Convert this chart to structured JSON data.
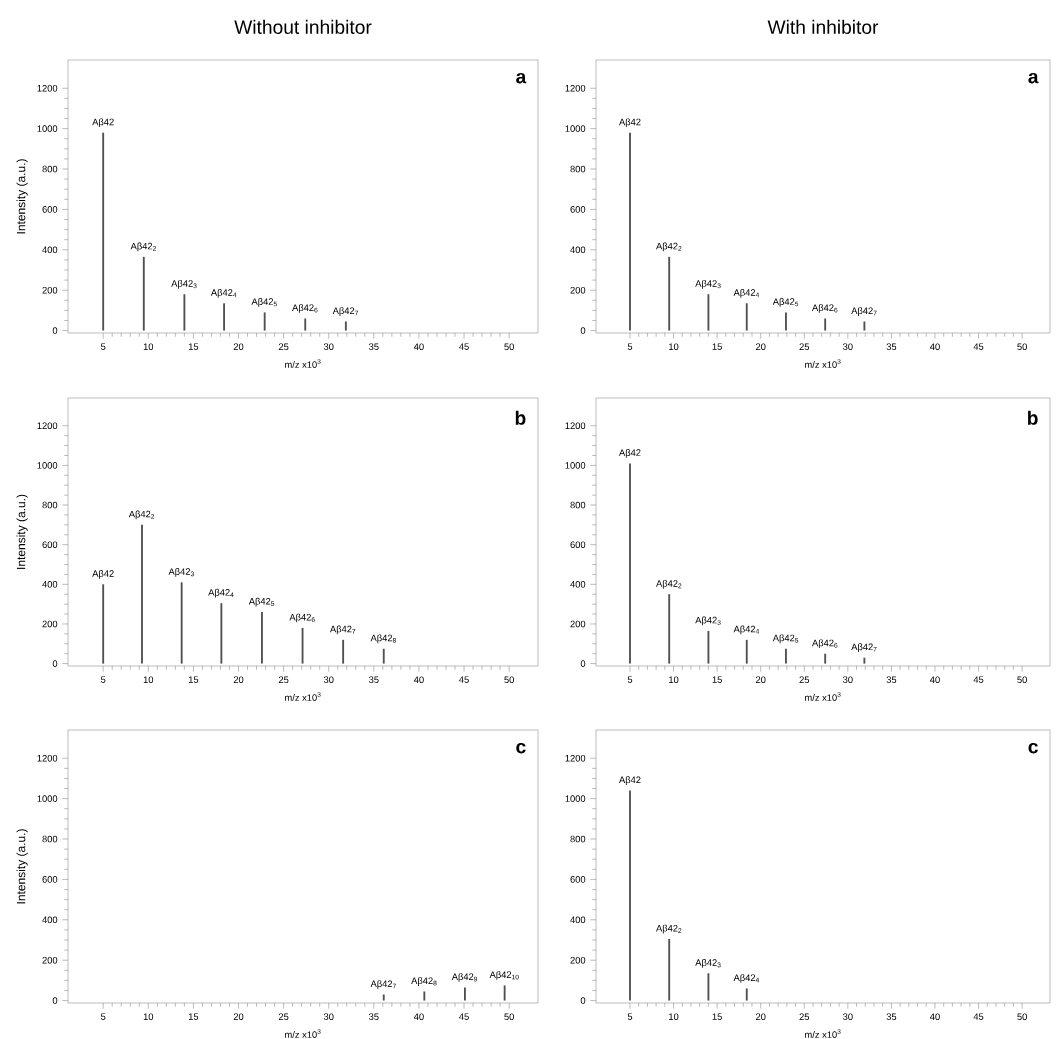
{
  "chart_data": [
    {
      "type": "bar",
      "title": "Without inhibitor",
      "xlabel": "m/z x10$^{3}$",
      "ylabel": "Intensity (a.u.)",
      "color": "#505050",
      "xlim": [
        1.1,
        53.2
      ],
      "ylim": [
        -12,
        1340
      ],
      "xticks": [
        5,
        10,
        15,
        20,
        25,
        30,
        35,
        40,
        45,
        50
      ],
      "yticks": [
        0,
        200,
        400,
        600,
        800,
        1000,
        1200
      ],
      "annotations": [
        "a"
      ],
      "x": [
        5,
        9.5,
        14,
        18.4,
        22.9,
        27.4,
        31.9
      ],
      "values": [
        980,
        365,
        180,
        135,
        90,
        60,
        45
      ],
      "value_labels": [
        "Aβ42",
        "Aβ42$_{2}$",
        "Aβ42$_{3}$",
        "Aβ42$_{4}$",
        "Aβ42$_{5}$",
        "Aβ42$_{6}$",
        "Aβ42$_{7}$"
      ]
    },
    {
      "type": "bar",
      "title": "With inhibitor",
      "xlabel": "m/z x10$^{3}$",
      "color": "#505050",
      "xlim": [
        1.1,
        53.2
      ],
      "ylim": [
        -12,
        1340
      ],
      "xticks": [
        5,
        10,
        15,
        20,
        25,
        30,
        35,
        40,
        45,
        50
      ],
      "yticks": [
        0,
        200,
        400,
        600,
        800,
        1000,
        1200
      ],
      "annotations": [
        "a"
      ],
      "x": [
        5,
        9.5,
        14,
        18.4,
        22.9,
        27.4,
        31.9
      ],
      "values": [
        980,
        365,
        180,
        135,
        90,
        60,
        45
      ],
      "value_labels": [
        "Aβ42",
        "Aβ42$_{2}$",
        "Aβ42$_{3}$",
        "Aβ42$_{4}$",
        "Aβ42$_{5}$",
        "Aβ42$_{6}$",
        "Aβ42$_{7}$"
      ]
    },
    {
      "type": "bar",
      "xlabel": "m/z x10$^{3}$",
      "ylabel": "Intensity (a.u.)",
      "color": "#505050",
      "xlim": [
        1.1,
        53.2
      ],
      "ylim": [
        -12,
        1340
      ],
      "xticks": [
        5,
        10,
        15,
        20,
        25,
        30,
        35,
        40,
        45,
        50
      ],
      "yticks": [
        0,
        200,
        400,
        600,
        800,
        1000,
        1200
      ],
      "annotations": [
        "b"
      ],
      "x": [
        5,
        9.3,
        13.7,
        18.1,
        22.6,
        27.1,
        31.6,
        36.1
      ],
      "values": [
        400,
        700,
        410,
        305,
        260,
        180,
        120,
        75
      ],
      "value_labels": [
        "Aβ42",
        "Aβ42$_{2}$",
        "Aβ42$_{3}$",
        "Aβ42$_{4}$",
        "Aβ42$_{5}$",
        "Aβ42$_{6}$",
        "Aβ42$_{7}$",
        "Aβ42$_{8}$"
      ]
    },
    {
      "type": "bar",
      "xlabel": "m/z x10$^{3}$",
      "color": "#505050",
      "xlim": [
        1.1,
        53.2
      ],
      "ylim": [
        -12,
        1340
      ],
      "xticks": [
        5,
        10,
        15,
        20,
        25,
        30,
        35,
        40,
        45,
        50
      ],
      "yticks": [
        0,
        200,
        400,
        600,
        800,
        1000,
        1200
      ],
      "annotations": [
        "b"
      ],
      "x": [
        5,
        9.5,
        14,
        18.4,
        22.9,
        27.4,
        31.9
      ],
      "values": [
        1010,
        350,
        165,
        120,
        75,
        50,
        30
      ],
      "value_labels": [
        "Aβ42",
        "Aβ42$_{2}$",
        "Aβ42$_{3}$",
        "Aβ42$_{4}$",
        "Aβ42$_{5}$",
        "Aβ42$_{6}$",
        "Aβ42$_{7}$"
      ]
    },
    {
      "type": "bar",
      "xlabel": "m/z x10$^{3}$",
      "ylabel": "Intensity (a.u.)",
      "color": "#505050",
      "xlim": [
        1.1,
        53.2
      ],
      "ylim": [
        -12,
        1340
      ],
      "xticks": [
        5,
        10,
        15,
        20,
        25,
        30,
        35,
        40,
        45,
        50
      ],
      "yticks": [
        0,
        200,
        400,
        600,
        800,
        1000,
        1200
      ],
      "annotations": [
        "c"
      ],
      "x": [
        36.1,
        40.6,
        45.1,
        49.5
      ],
      "values": [
        30,
        45,
        65,
        75
      ],
      "value_labels": [
        "Aβ42$_{7}$",
        "Aβ42$_{8}$",
        "Aβ42$_{9}$",
        "Aβ42$_{10}$"
      ]
    },
    {
      "type": "bar",
      "xlabel": "m/z x10$^{3}$",
      "color": "#505050",
      "xlim": [
        1.1,
        53.2
      ],
      "ylim": [
        -12,
        1340
      ],
      "xticks": [
        5,
        10,
        15,
        20,
        25,
        30,
        35,
        40,
        45,
        50
      ],
      "yticks": [
        0,
        200,
        400,
        600,
        800,
        1000,
        1200
      ],
      "annotations": [
        "c"
      ],
      "x": [
        5,
        9.5,
        14,
        18.4
      ],
      "values": [
        1040,
        305,
        135,
        60
      ],
      "value_labels": [
        "Aβ42",
        "Aβ42$_{2}$",
        "Aβ42$_{3}$",
        "Aβ42$_{4}$"
      ]
    }
  ]
}
